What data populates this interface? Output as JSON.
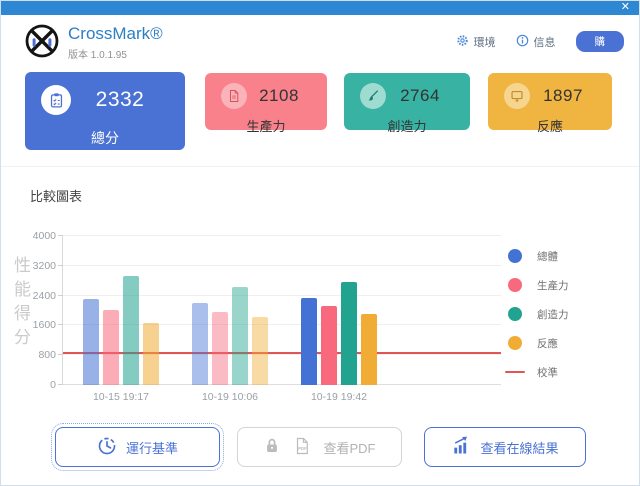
{
  "window": {
    "close_label": "✕"
  },
  "header": {
    "app_title": "CrossMark®",
    "version": "版本 1.0.1.95",
    "nav": [
      {
        "label": "環境",
        "icon": "gear-icon"
      },
      {
        "label": "信息",
        "icon": "info-icon"
      }
    ],
    "buy_button": "購"
  },
  "scores": [
    {
      "label": "總分",
      "value": "2332",
      "color": "#4a72d4",
      "icon": "clipboard-icon"
    },
    {
      "label": "生產力",
      "value": "2108",
      "color": "#f8818b",
      "icon": "document-icon"
    },
    {
      "label": "創造力",
      "value": "2764",
      "color": "#38b2a3",
      "icon": "brush-icon"
    },
    {
      "label": "反應",
      "value": "1897",
      "color": "#f0b441",
      "icon": "monitor-icon"
    }
  ],
  "section_title": "比較圖表",
  "chart_data": {
    "type": "bar",
    "title": "比較圖表",
    "ylabel": "性能得分",
    "ylim": [
      0,
      4000
    ],
    "yticks": [
      0,
      800,
      1600,
      2400,
      3200,
      4000
    ],
    "grid": true,
    "legend_position": "right",
    "categories": [
      "10-15 19:17",
      "10-19 10:06",
      "10-19 19:42"
    ],
    "series": [
      {
        "name": "總體",
        "color": "#4472d4",
        "values": [
          2310,
          2200,
          2332
        ]
      },
      {
        "name": "生產力",
        "color": "#f8697e",
        "values": [
          2020,
          1960,
          2108
        ]
      },
      {
        "name": "創造力",
        "color": "#21a38f",
        "values": [
          2920,
          2630,
          2764
        ]
      },
      {
        "name": "反應",
        "color": "#f0ac35",
        "values": [
          1670,
          1820,
          1897
        ]
      }
    ],
    "baseline": {
      "name": "校準",
      "value": 830,
      "color": "#e05555"
    },
    "group_opacity": [
      0.55,
      0.45,
      1
    ]
  },
  "footer": {
    "run_label": "運行基準",
    "pdf_label": "查看PDF",
    "online_label": "查看在線結果"
  }
}
